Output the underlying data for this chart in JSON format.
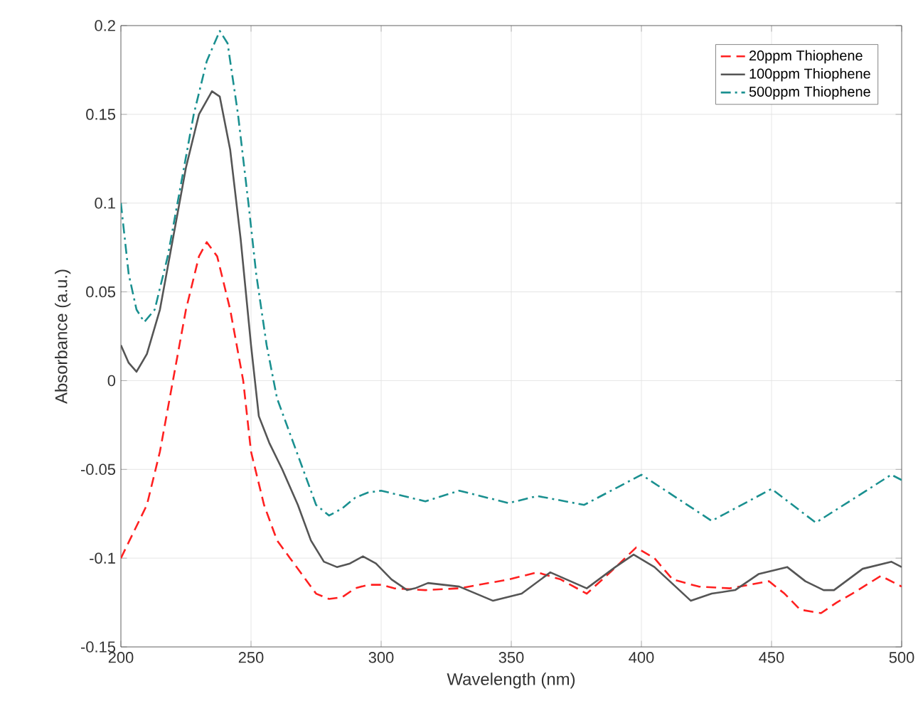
{
  "chart_data": {
    "type": "line",
    "xlabel": "Wavelength (nm)",
    "ylabel": "Absorbance (a.u.)",
    "xlim": [
      200,
      500
    ],
    "ylim": [
      -0.15,
      0.2
    ],
    "xticks": [
      200,
      250,
      300,
      350,
      400,
      450,
      500
    ],
    "yticks": [
      -0.15,
      -0.1,
      -0.05,
      0,
      0.05,
      0.1,
      0.15,
      0.2
    ],
    "grid": true,
    "legend": "top right",
    "series": [
      {
        "name": "20ppm Thiophene",
        "color": "#ff2020",
        "line_style": "dashed",
        "x": [
          200,
          205,
          210,
          215,
          220,
          225,
          230,
          233,
          237,
          242,
          247,
          250,
          255,
          260,
          265,
          270,
          275,
          280,
          285,
          290,
          295,
          300,
          305,
          317,
          330,
          349,
          360,
          369,
          379,
          388,
          398,
          405,
          412,
          422,
          434,
          449,
          455,
          461,
          469,
          475,
          481,
          492,
          500
        ],
        "values": [
          -0.1,
          -0.085,
          -0.07,
          -0.04,
          0,
          0.04,
          0.07,
          0.078,
          0.07,
          0.04,
          0,
          -0.04,
          -0.07,
          -0.09,
          -0.1,
          -0.11,
          -0.12,
          -0.123,
          -0.122,
          -0.117,
          -0.115,
          -0.115,
          -0.117,
          -0.118,
          -0.117,
          -0.112,
          -0.108,
          -0.112,
          -0.12,
          -0.108,
          -0.094,
          -0.1,
          -0.112,
          -0.116,
          -0.117,
          -0.113,
          -0.12,
          -0.129,
          -0.131,
          -0.125,
          -0.12,
          -0.11,
          -0.116
        ]
      },
      {
        "name": "100ppm Thiophene",
        "color": "#555555",
        "line_style": "solid",
        "x": [
          200,
          203,
          206,
          210,
          215,
          220,
          225,
          230,
          235,
          238,
          242,
          246,
          250,
          253,
          257,
          262,
          268,
          273,
          278,
          283,
          288,
          293,
          298,
          304,
          310,
          313,
          318,
          330,
          343,
          354,
          365,
          379,
          390,
          397,
          405,
          419,
          427,
          436,
          445,
          456,
          463,
          470,
          474,
          485,
          496,
          500
        ],
        "values": [
          0.02,
          0.01,
          0.005,
          0.015,
          0.04,
          0.08,
          0.12,
          0.15,
          0.163,
          0.16,
          0.13,
          0.08,
          0.02,
          -0.02,
          -0.035,
          -0.05,
          -0.07,
          -0.09,
          -0.102,
          -0.105,
          -0.103,
          -0.099,
          -0.103,
          -0.112,
          -0.118,
          -0.117,
          -0.114,
          -0.116,
          -0.124,
          -0.12,
          -0.108,
          -0.117,
          -0.105,
          -0.098,
          -0.105,
          -0.124,
          -0.12,
          -0.118,
          -0.109,
          -0.105,
          -0.113,
          -0.118,
          -0.118,
          -0.106,
          -0.102,
          -0.105
        ]
      },
      {
        "name": "500ppm Thiophene",
        "color": "#1a9090",
        "line_style": "dashdot",
        "x": [
          200,
          203,
          206,
          209,
          213,
          218,
          223,
          228,
          233,
          238,
          241,
          245,
          249,
          252,
          256,
          260,
          265,
          270,
          275,
          280,
          285,
          290,
          295,
          300,
          317,
          330,
          349,
          360,
          378,
          400,
          427,
          450,
          467,
          481,
          496,
          500
        ],
        "values": [
          0.1,
          0.06,
          0.04,
          0.033,
          0.04,
          0.07,
          0.11,
          0.15,
          0.18,
          0.197,
          0.19,
          0.15,
          0.1,
          0.06,
          0.02,
          -0.01,
          -0.03,
          -0.05,
          -0.07,
          -0.076,
          -0.072,
          -0.066,
          -0.063,
          -0.062,
          -0.068,
          -0.062,
          -0.069,
          -0.065,
          -0.07,
          -0.053,
          -0.079,
          -0.061,
          -0.08,
          -0.067,
          -0.053,
          -0.056
        ]
      }
    ]
  }
}
